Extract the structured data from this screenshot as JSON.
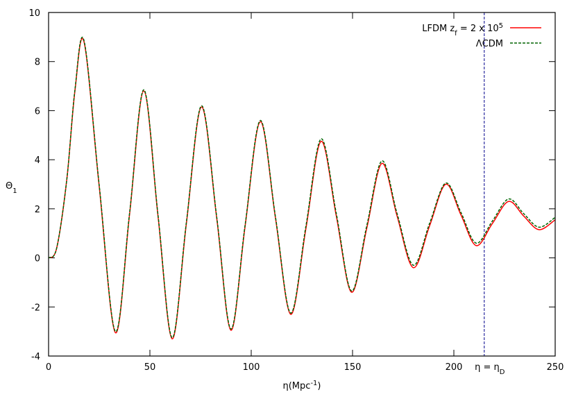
{
  "chart_data": {
    "type": "line",
    "xlabel": "η(Mpc^{-1})",
    "ylabel": "Θ_1",
    "x": [
      0,
      4,
      9,
      13,
      17.5,
      25,
      33,
      40,
      47,
      54,
      61,
      68,
      75.5,
      83,
      90,
      97,
      104.5,
      112,
      119.5,
      127,
      134.5,
      142,
      149.5,
      157,
      164.5,
      172,
      180,
      188,
      196,
      203.5,
      211,
      219,
      227,
      234.5,
      242,
      250
    ],
    "series": [
      {
        "name": "LFDM z_f = 2 x 10^5",
        "color": "#ff0000",
        "dash": false,
        "values": [
          0,
          0.4,
          3.2,
          6.8,
          8.8,
          2.9,
          -3.05,
          1.8,
          6.8,
          1.7,
          -3.3,
          1.4,
          6.15,
          1.6,
          -2.95,
          1.3,
          5.55,
          1.6,
          -2.3,
          1.2,
          4.75,
          1.7,
          -1.4,
          1.2,
          3.85,
          1.7,
          -0.4,
          1.3,
          3.0,
          1.75,
          0.5,
          1.4,
          2.3,
          1.7,
          1.15,
          1.55
        ]
      },
      {
        "name": "ΛCDM",
        "color": "#006400",
        "dash": true,
        "values": [
          0,
          0.4,
          3.2,
          6.85,
          8.85,
          2.95,
          -3.0,
          1.85,
          6.85,
          1.75,
          -3.25,
          1.45,
          6.2,
          1.65,
          -2.9,
          1.35,
          5.6,
          1.65,
          -2.25,
          1.3,
          4.85,
          1.8,
          -1.35,
          1.3,
          3.95,
          1.8,
          -0.3,
          1.4,
          3.05,
          1.85,
          0.6,
          1.5,
          2.4,
          1.8,
          1.25,
          1.65
        ]
      }
    ],
    "xlim": [
      0,
      250
    ],
    "ylim": [
      -4,
      10
    ],
    "xticks": [
      0,
      50,
      100,
      150,
      200,
      250
    ],
    "yticks": [
      -4,
      -2,
      0,
      2,
      4,
      6,
      8,
      10
    ],
    "legend": "upper right",
    "annotations": [
      {
        "x": 215,
        "label": "η = η_D",
        "color": "#00008b"
      }
    ]
  }
}
